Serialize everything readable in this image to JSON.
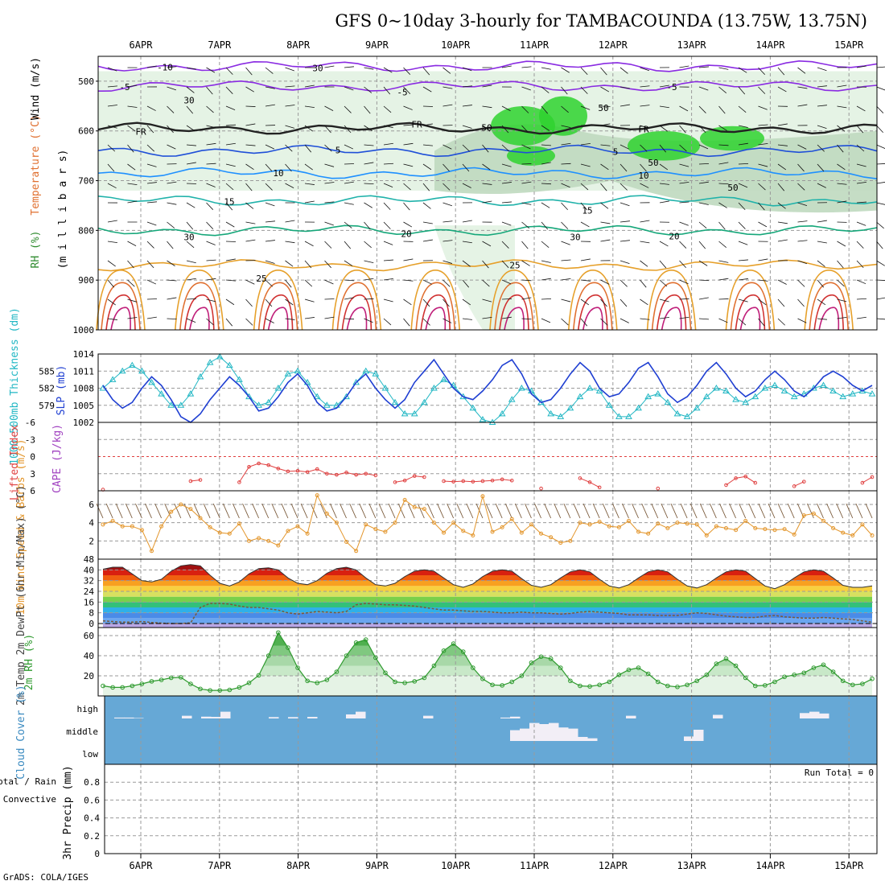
{
  "title": "GFS 0~10day 3-hourly for TAMBACOUNDA (13.75W, 13.75N)",
  "credit": "GrADS: COLA/IGES",
  "colors": {
    "grid": "#9a9a9a",
    "rh_green_light": "#e5f3e5",
    "rh_green": "#bfd9bf",
    "rh_green_dark": "#2fd22f",
    "wind_barb": "#111111",
    "slp": "#1f3fd2",
    "thickness": "#22b7c4",
    "lifted": "#e04040",
    "wind10": "#e3962c",
    "cloud": "#66a8d6",
    "rh2m": "#2e9a2e"
  },
  "chart_data": [
    {
      "type": "heatmap",
      "panel": "upper",
      "title": "Wind (m/s)",
      "ylabel_parts": [
        "RH (%)",
        "Temperature (°C)",
        "Wind (m/s)"
      ],
      "ylabel_axis": "(m i l l i b a r s)",
      "yticks": [
        500,
        600,
        700,
        800,
        900,
        1000
      ],
      "ylim": [
        450,
        1000
      ],
      "x_dates": [
        "6APR",
        "7APR",
        "8APR",
        "9APR",
        "10APR",
        "11APR",
        "12APR",
        "13APR",
        "14APR",
        "15APR"
      ],
      "contour_labels": [
        "-10",
        "-5",
        "-5",
        "-5",
        "FR",
        "FR",
        "FR",
        "5",
        "5",
        "10",
        "10",
        "15",
        "15",
        "20",
        "20",
        "25",
        "25"
      ],
      "rh_labels": [
        "30",
        "30",
        "30",
        "50",
        "50",
        "50",
        "50",
        "30"
      ],
      "isotherms": [
        {
          "label": "-10",
          "p": 470
        },
        {
          "label": "-5",
          "p": 510
        },
        {
          "label": "FR",
          "p": 595
        },
        {
          "label": "5",
          "p": 640
        },
        {
          "label": "10",
          "p": 685
        },
        {
          "label": "15",
          "p": 740
        },
        {
          "label": "20",
          "p": 800
        },
        {
          "label": "25",
          "p": 870
        }
      ]
    },
    {
      "type": "line",
      "panel": "slp",
      "ylabel_left": "1000-500mb Thickness (dm)",
      "ylabel_right": "SLP (mb)",
      "yticks_left": [
        579,
        582,
        585
      ],
      "yticks_right": [
        1002,
        1005,
        1008,
        1011,
        1014
      ],
      "ylim": [
        1002,
        1014
      ],
      "series": [
        {
          "name": "SLP (mb)",
          "values": [
            1008.5,
            1006,
            1004.5,
            1005.5,
            1008,
            1010,
            1008.5,
            1006,
            1003,
            1002,
            1003.5,
            1006,
            1008,
            1010,
            1008.5,
            1006.5,
            1004,
            1004.5,
            1006.5,
            1009,
            1010.5,
            1008.5,
            1005.5,
            1004,
            1004.5,
            1006.5,
            1009,
            1010.5,
            1008,
            1006,
            1004.5,
            1006,
            1009,
            1011,
            1013,
            1010.5,
            1008,
            1006.5,
            1006,
            1007.5,
            1009.5,
            1012,
            1013,
            1010.5,
            1007,
            1005.5,
            1006,
            1008,
            1010.5,
            1012.5,
            1011,
            1008,
            1006.5,
            1007,
            1009,
            1011.5,
            1012.5,
            1010,
            1007,
            1005.5,
            1006.5,
            1008.5,
            1011,
            1012.5,
            1010.5,
            1008,
            1006.5,
            1007.5,
            1009.5,
            1011,
            1009.5,
            1007.5,
            1006.5,
            1008,
            1010,
            1011,
            1010,
            1008.5,
            1007.5,
            1008.5
          ]
        },
        {
          "name": "Thickness (dm)",
          "values": [
            1008,
            1009.5,
            1011,
            1012,
            1011,
            1009,
            1007,
            1005,
            1005,
            1007,
            1010,
            1012.5,
            1013.5,
            1012,
            1009.5,
            1006.5,
            1005,
            1005.5,
            1008,
            1010.5,
            1011,
            1009,
            1006.5,
            1005,
            1005,
            1006.5,
            1009,
            1011,
            1010.5,
            1008,
            1005.5,
            1003.5,
            1003.5,
            1005.5,
            1008,
            1009.5,
            1008.5,
            1006.5,
            1004.5,
            1002.5,
            1002,
            1003.5,
            1006,
            1008,
            1007.5,
            1005.5,
            1003.5,
            1003,
            1004.5,
            1006.5,
            1008,
            1007.5,
            1005,
            1003,
            1003,
            1004.5,
            1006.5,
            1007,
            1005.5,
            1003.5,
            1003,
            1004.5,
            1006.5,
            1008,
            1007.5,
            1006,
            1005.5,
            1006.5,
            1008,
            1008.5,
            1007.5,
            1006.5,
            1007,
            1008,
            1008.5,
            1007.5,
            1006.5,
            1007,
            1007.5,
            1007
          ]
        }
      ]
    },
    {
      "type": "line",
      "panel": "lifted",
      "ylabel_left": "Lifted Index",
      "ylabel_right": "CAPE (J/kg)",
      "yticks": [
        -6,
        -3,
        0,
        3,
        6
      ],
      "ylim": [
        6,
        -6
      ],
      "series": [
        {
          "name": "Lifted Index",
          "values": [
            5.8,
            null,
            null,
            null,
            null,
            null,
            null,
            null,
            null,
            4.3,
            4.1,
            null,
            null,
            null,
            4.5,
            1.8,
            1.2,
            1.5,
            2.1,
            2.6,
            2.5,
            2.7,
            2.2,
            3.0,
            3.2,
            2.8,
            3.2,
            3.0,
            3.3,
            null,
            4.5,
            4.2,
            3.4,
            3.6,
            null,
            4.3,
            4.4,
            4.3,
            4.4,
            4.3,
            4.2,
            4.0,
            4.2,
            null,
            null,
            5.6,
            null,
            null,
            null,
            3.8,
            4.5,
            5.4,
            null,
            null,
            null,
            null,
            null,
            5.6,
            null,
            null,
            null,
            null,
            null,
            null,
            5.0,
            3.8,
            3.5,
            4.6,
            null,
            null,
            null,
            5.2,
            4.4,
            null,
            null,
            null,
            null,
            null,
            4.6,
            3.6
          ]
        }
      ]
    },
    {
      "type": "line",
      "panel": "wind10",
      "ylabel": "10m Wind Speed & Barbs (m/s)",
      "yticks": [
        2,
        4,
        6
      ],
      "ylim": [
        0,
        7.5
      ],
      "series": [
        {
          "name": "10m Wind Speed",
          "values": [
            3.8,
            4.2,
            3.6,
            3.6,
            3.2,
            0.9,
            3.6,
            5.2,
            6.0,
            5.5,
            4.5,
            3.5,
            2.9,
            2.8,
            3.9,
            2.0,
            2.3,
            2.0,
            1.5,
            3.1,
            3.6,
            2.8,
            7.0,
            5.0,
            4.0,
            1.9,
            0.9,
            3.8,
            3.3,
            3.0,
            4.0,
            6.5,
            5.7,
            5.5,
            4.0,
            2.9,
            4.0,
            3.1,
            2.6,
            6.9,
            3.0,
            3.5,
            4.4,
            2.9,
            3.8,
            2.8,
            2.4,
            1.8,
            2.0,
            4.0,
            3.8,
            4.1,
            3.6,
            3.5,
            4.2,
            3.0,
            2.8,
            3.9,
            3.4,
            4.0,
            3.9,
            3.8,
            2.6,
            3.6,
            3.4,
            3.2,
            4.2,
            3.4,
            3.3,
            3.2,
            3.3,
            2.7,
            4.8,
            5.0,
            4.2,
            3.4,
            2.9,
            2.6,
            3.8,
            2.6
          ]
        }
      ]
    },
    {
      "type": "area",
      "panel": "temp",
      "ylabel": "2m Temp 2m DewPt (6hr Min/Max) (°C)",
      "yticks": [
        0,
        8,
        16,
        24,
        32,
        40,
        48
      ],
      "ylim": [
        -3,
        48
      ],
      "series": [
        {
          "name": "2m Temp",
          "values": [
            40.5,
            42,
            42,
            37,
            32,
            31,
            33,
            39,
            43,
            44,
            43,
            36,
            30,
            28,
            31,
            37,
            41,
            41.5,
            40,
            34,
            30,
            29,
            32,
            37.5,
            41,
            42,
            40,
            34,
            29,
            28,
            30,
            35,
            39,
            40,
            39,
            34,
            29,
            27,
            29.5,
            35,
            39,
            40,
            39,
            33.5,
            28.5,
            27,
            29,
            34,
            38.5,
            40,
            38.5,
            33,
            28,
            26.5,
            29,
            34,
            38.5,
            40,
            38.5,
            33,
            28,
            26.5,
            29,
            34,
            38.5,
            40,
            39,
            33.5,
            28,
            26,
            29,
            34,
            38.5,
            40,
            39,
            34,
            28.5,
            27,
            27,
            28
          ]
        },
        {
          "name": "2m DewPt",
          "values": [
            2,
            1.5,
            1,
            1,
            1.5,
            0.8,
            0.3,
            0,
            0,
            0.5,
            12,
            15,
            15,
            14.5,
            13,
            12,
            12,
            11,
            10,
            8,
            7,
            8,
            9,
            8.5,
            8,
            9,
            14,
            15,
            14.5,
            14,
            14,
            13.5,
            13,
            12,
            11,
            10,
            10,
            9.5,
            9,
            9,
            8.5,
            8,
            8,
            8.5,
            8,
            8,
            7.5,
            7,
            7.5,
            8.5,
            9,
            8.5,
            8,
            7.5,
            6.5,
            6.5,
            6.5,
            6,
            6,
            6,
            7,
            8,
            7.5,
            6.5,
            5.5,
            5,
            4.5,
            4.5,
            5.5,
            6,
            5,
            4.5,
            4,
            4,
            4.5,
            4,
            3.5,
            3,
            2,
            1
          ]
        }
      ]
    },
    {
      "type": "area",
      "panel": "rh",
      "ylabel": "2m RH (%)",
      "yticks": [
        20,
        40,
        60
      ],
      "ylim": [
        0,
        68
      ],
      "series": [
        {
          "name": "2m RH",
          "values": [
            10,
            8.5,
            8.5,
            10,
            12,
            14.5,
            16,
            18,
            18.5,
            12,
            7,
            5.5,
            5.5,
            6,
            8.5,
            13,
            20.5,
            40,
            63,
            48,
            28,
            15,
            13,
            16,
            24,
            40,
            53,
            56,
            38,
            23,
            14,
            13,
            14.5,
            18,
            30,
            45,
            52,
            44,
            28,
            17,
            11,
            10.5,
            14,
            20,
            33,
            39,
            37,
            28,
            15,
            10,
            9.5,
            11,
            14,
            21,
            26,
            28,
            22,
            14,
            10,
            9,
            11,
            15,
            21,
            32,
            37,
            30,
            18,
            10,
            10.5,
            14,
            19,
            21,
            23,
            28,
            31,
            24,
            15,
            11,
            12,
            17
          ]
        }
      ]
    },
    {
      "type": "bar",
      "panel": "cloud",
      "ylabel": "Cloud Cover (%)",
      "layers": [
        "high",
        "middle",
        "low"
      ],
      "series": [
        {
          "name": "high",
          "values": [
            0,
            4,
            4,
            2,
            0,
            0,
            0,
            0,
            12,
            0,
            8,
            7,
            30,
            0,
            0,
            0,
            0,
            6,
            0,
            6,
            0,
            7,
            0,
            0,
            0,
            18,
            30,
            0,
            0,
            0,
            0,
            0,
            0,
            12,
            0,
            0,
            0,
            0,
            0,
            0,
            0,
            4,
            8,
            0,
            0,
            0,
            0,
            0,
            0,
            0,
            0,
            0,
            0,
            0,
            12,
            0,
            0,
            0,
            0,
            0,
            0,
            0,
            0,
            16,
            0,
            0,
            0,
            0,
            0,
            0,
            0,
            0,
            24,
            30,
            22,
            0,
            0,
            0,
            0,
            0
          ]
        },
        {
          "name": "middle",
          "values": [
            0,
            0,
            0,
            0,
            0,
            0,
            0,
            0,
            0,
            0,
            0,
            0,
            0,
            0,
            0,
            0,
            0,
            0,
            0,
            0,
            0,
            0,
            0,
            0,
            0,
            0,
            0,
            0,
            0,
            0,
            0,
            0,
            0,
            0,
            0,
            0,
            0,
            0,
            0,
            0,
            0,
            0,
            48,
            55,
            80,
            75,
            80,
            60,
            55,
            18,
            12,
            0,
            0,
            0,
            0,
            0,
            0,
            0,
            0,
            0,
            20,
            50,
            0,
            0,
            0,
            0,
            0,
            0,
            0,
            0,
            0,
            0,
            0,
            0,
            0,
            0,
            0,
            0,
            0,
            0
          ]
        },
        {
          "name": "low",
          "values": [
            0,
            0,
            0,
            0,
            0,
            0,
            0,
            0,
            0,
            0,
            0,
            0,
            0,
            0,
            0,
            0,
            0,
            0,
            0,
            0,
            0,
            0,
            0,
            0,
            0,
            0,
            0,
            0,
            0,
            0,
            0,
            0,
            0,
            0,
            0,
            0,
            0,
            0,
            0,
            0,
            0,
            0,
            0,
            0,
            0,
            0,
            0,
            0,
            0,
            0,
            0,
            0,
            0,
            0,
            0,
            0,
            0,
            0,
            0,
            0,
            0,
            0,
            0,
            0,
            0,
            0,
            0,
            0,
            0,
            0,
            0,
            0,
            0,
            0,
            0,
            0,
            0,
            0,
            0,
            0
          ]
        }
      ]
    },
    {
      "type": "bar",
      "panel": "precip",
      "ylabel_parts": [
        "Total / Rain",
        "Convective",
        "3hr Precip (mm)"
      ],
      "annotation": "Run Total = 0",
      "yticks": [
        "0",
        "0.2",
        "0.4",
        "0.6",
        "0.8"
      ],
      "ylim": [
        0,
        1
      ],
      "series": [
        {
          "name": "Total",
          "values": [
            0,
            0,
            0,
            0,
            0,
            0,
            0,
            0,
            0,
            0
          ]
        }
      ]
    }
  ]
}
